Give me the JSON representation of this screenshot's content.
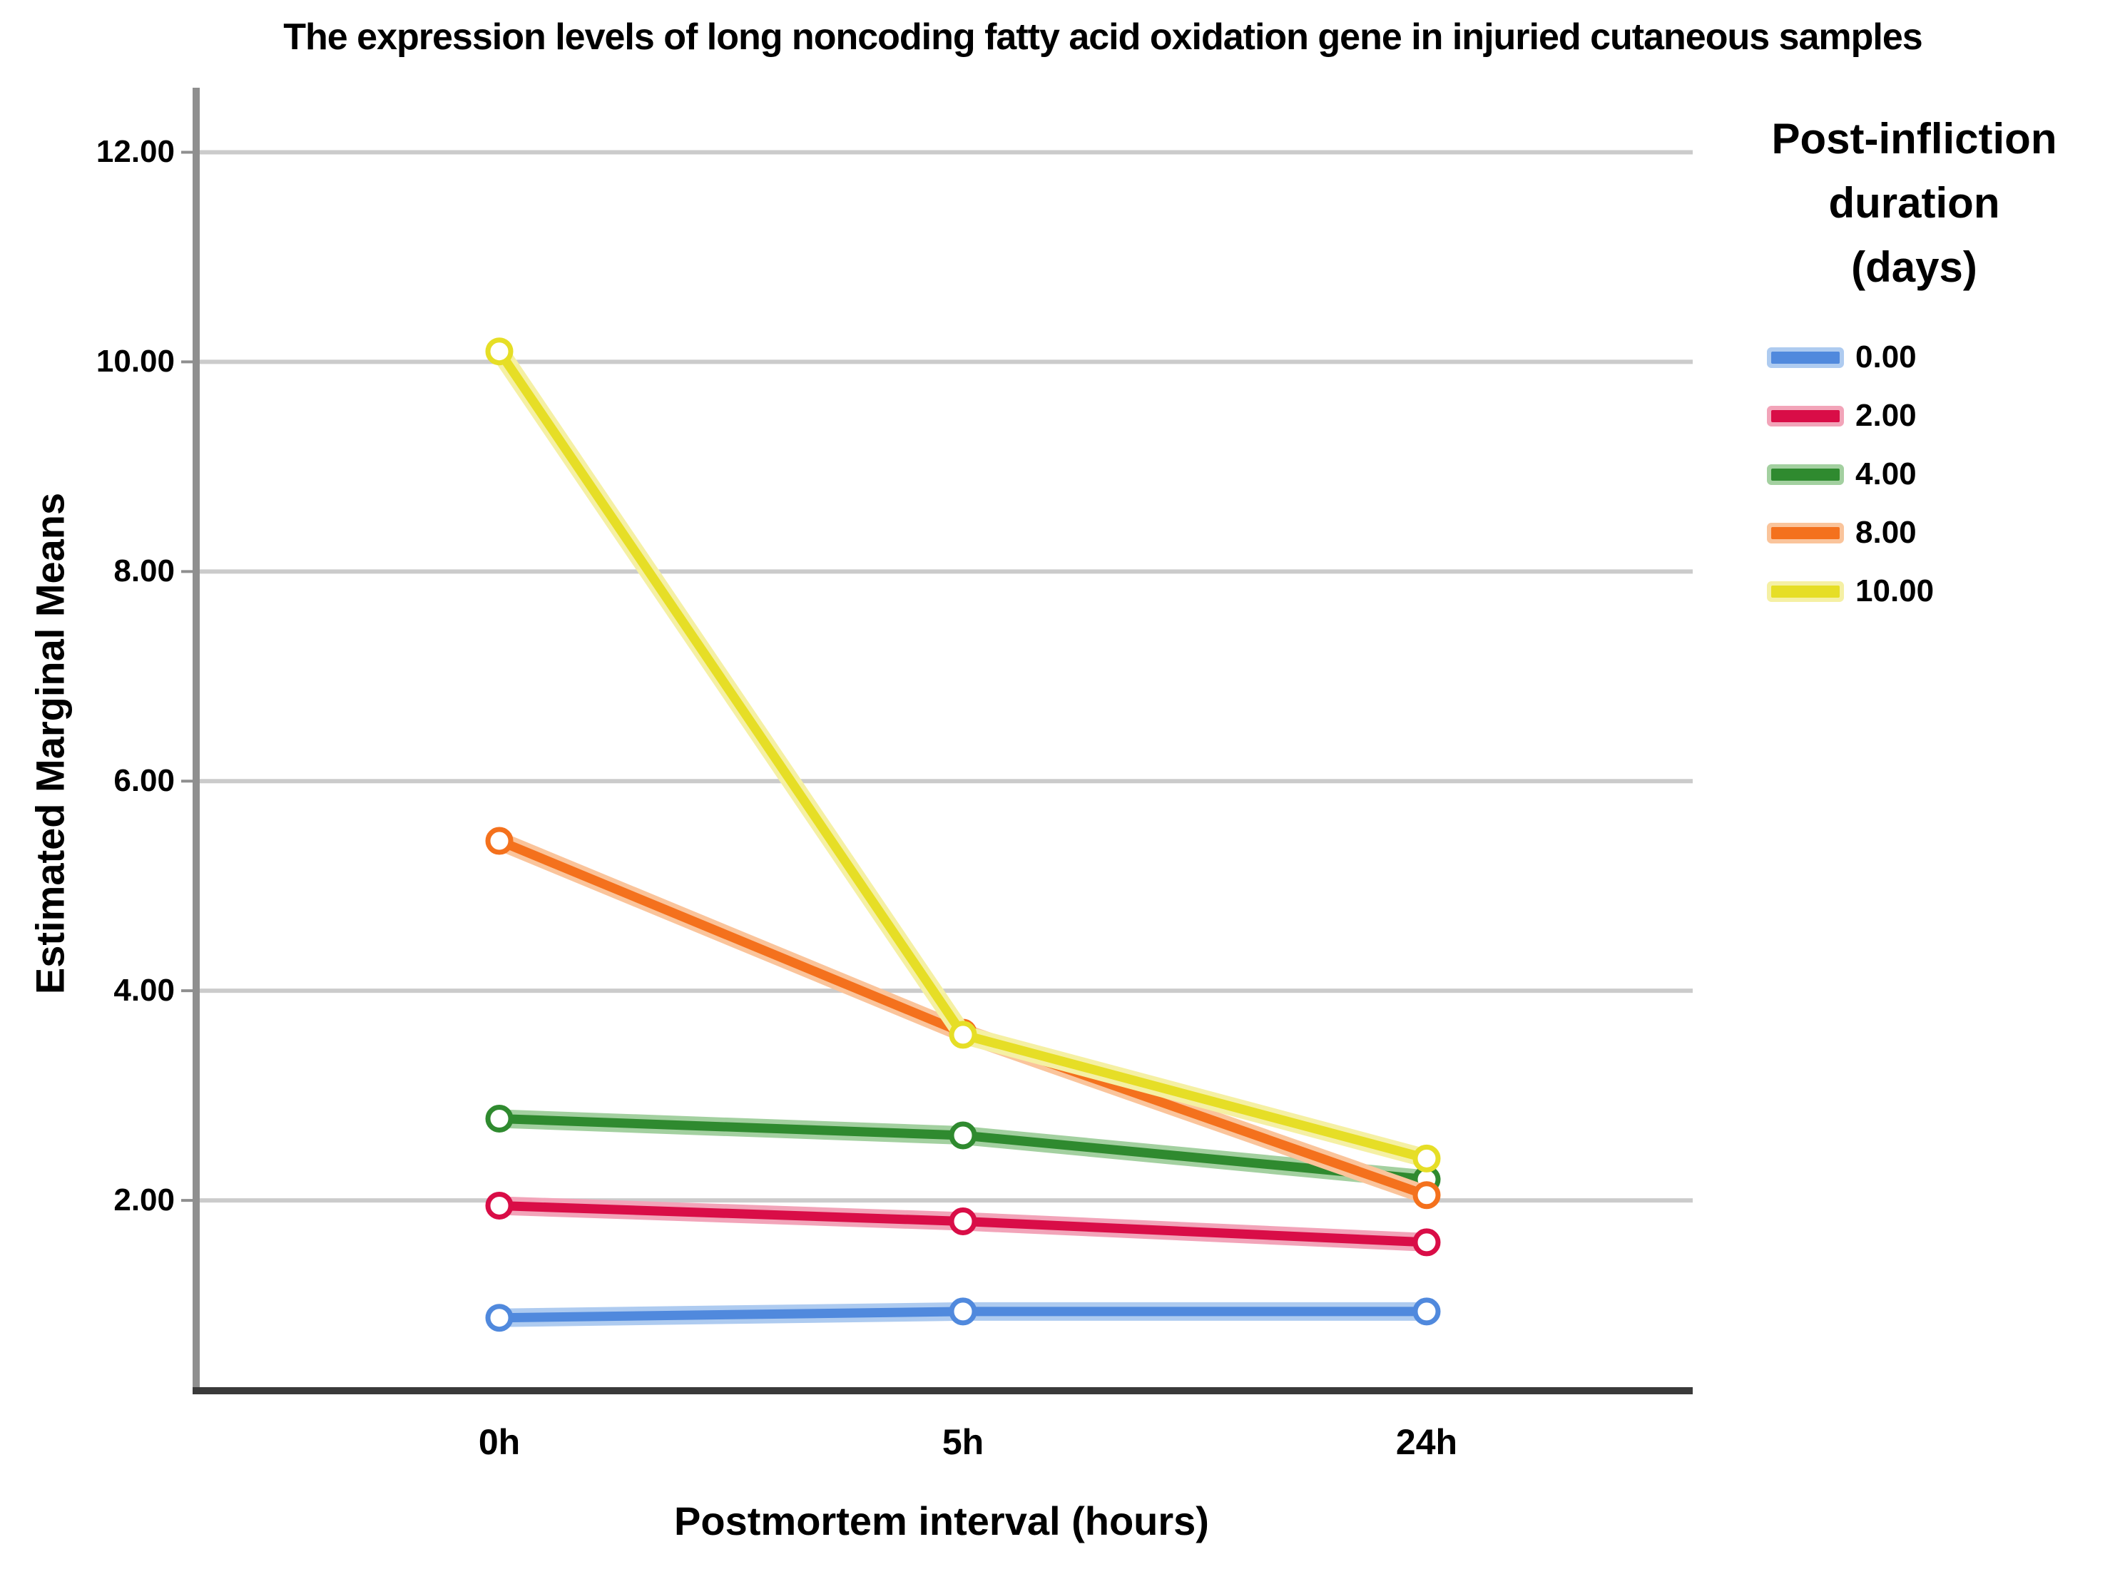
{
  "title": "The expression levels of long noncoding fatty acid oxidation gene in injuried cutaneous samples",
  "chart_data": {
    "type": "line",
    "categories": [
      "0h",
      "5h",
      "24h"
    ],
    "xlabel": "Postmortem interval (hours)",
    "ylabel": "Estimated Marginal Means",
    "ylim": [
      0.15,
      12.67
    ],
    "yticks": [
      2,
      4,
      6,
      8,
      10,
      12
    ],
    "ytick_labels": [
      "2.00",
      "4.00",
      "6.00",
      "8.00",
      "10.00",
      "12.00"
    ],
    "grid": true,
    "legend_position": "right",
    "legend_title": "Post-infliction duration (days)",
    "legend_title_lines": [
      "Post-infliction",
      "duration",
      "(days)"
    ],
    "series": [
      {
        "name": "0.00",
        "color": "#5089DD",
        "halo": "#AECBF0",
        "values": [
          0.88,
          0.94,
          0.94
        ]
      },
      {
        "name": "2.00",
        "color": "#D90D47",
        "halo": "#F2A4B9",
        "values": [
          1.95,
          1.8,
          1.6
        ]
      },
      {
        "name": "4.00",
        "color": "#2F8A2F",
        "halo": "#A3D0A0",
        "values": [
          2.78,
          2.62,
          2.2
        ]
      },
      {
        "name": "8.00",
        "color": "#F4711D",
        "halo": "#FAC49B",
        "values": [
          5.43,
          3.6,
          2.05
        ]
      },
      {
        "name": "10.00",
        "color": "#E6DE26",
        "halo": "#F5F0A4",
        "values": [
          10.1,
          3.58,
          2.4
        ]
      }
    ],
    "style": {
      "gridline_color": "#CBCBCB",
      "y_axis_color": "#8F8F8F",
      "x_axis_color": "#3A3A3A",
      "text_color": "#000000",
      "background": "#FFFFFF"
    }
  }
}
